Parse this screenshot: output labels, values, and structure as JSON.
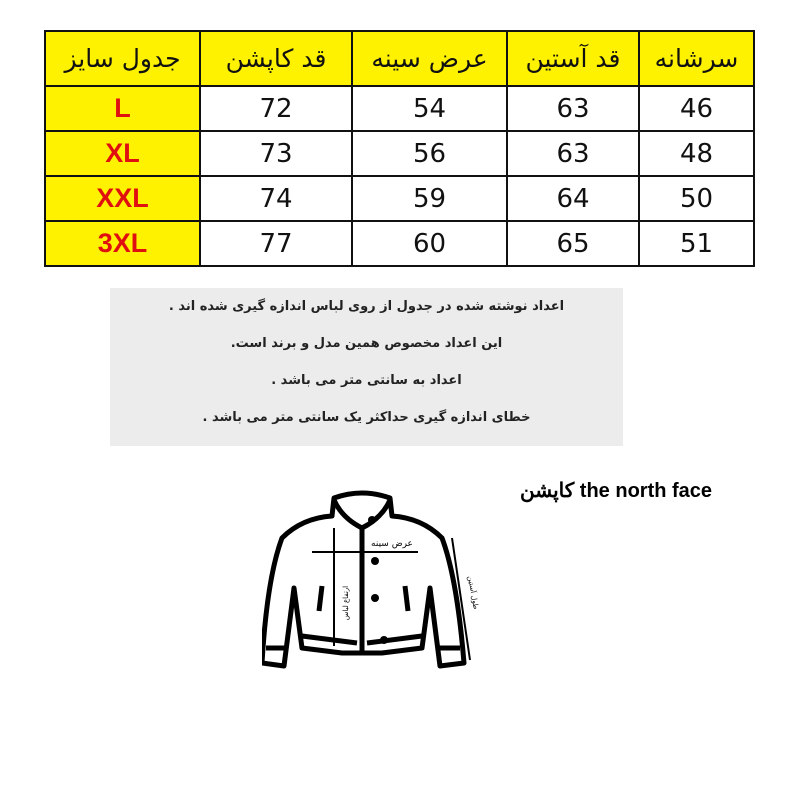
{
  "table": {
    "headers": {
      "size": "جدول سایز",
      "length": "قد کاپشن",
      "chest": "عرض سینه",
      "sleeve": "قد آستین",
      "shoulder": "سرشانه"
    },
    "rows": [
      {
        "size": "L",
        "length": "72",
        "chest": "54",
        "sleeve": "63",
        "shoulder": "46"
      },
      {
        "size": "XL",
        "length": "73",
        "chest": "56",
        "sleeve": "63",
        "shoulder": "48"
      },
      {
        "size": "XXL",
        "length": "74",
        "chest": "59",
        "sleeve": "64",
        "shoulder": "50"
      },
      {
        "size": "3XL",
        "length": "77",
        "chest": "60",
        "sleeve": "65",
        "shoulder": "51"
      }
    ],
    "header_color": "#fff200",
    "size_text_color": "#e01010"
  },
  "notes": [
    "اعداد نوشته شده در جدول از روی لباس اندازه گیری شده اند .",
    "این اعداد مخصوص همین مدل و برند است.",
    "اعداد به سانتی متر می باشد .",
    "خطای اندازه گیری حداکثر یک سانتی متر می باشد ."
  ],
  "product_title": "کاپشن the north face",
  "diagram": {
    "chest_label": "عرض سینه",
    "length_label": "ارتفاع لباس",
    "sleeve_label": "طول آستین"
  }
}
